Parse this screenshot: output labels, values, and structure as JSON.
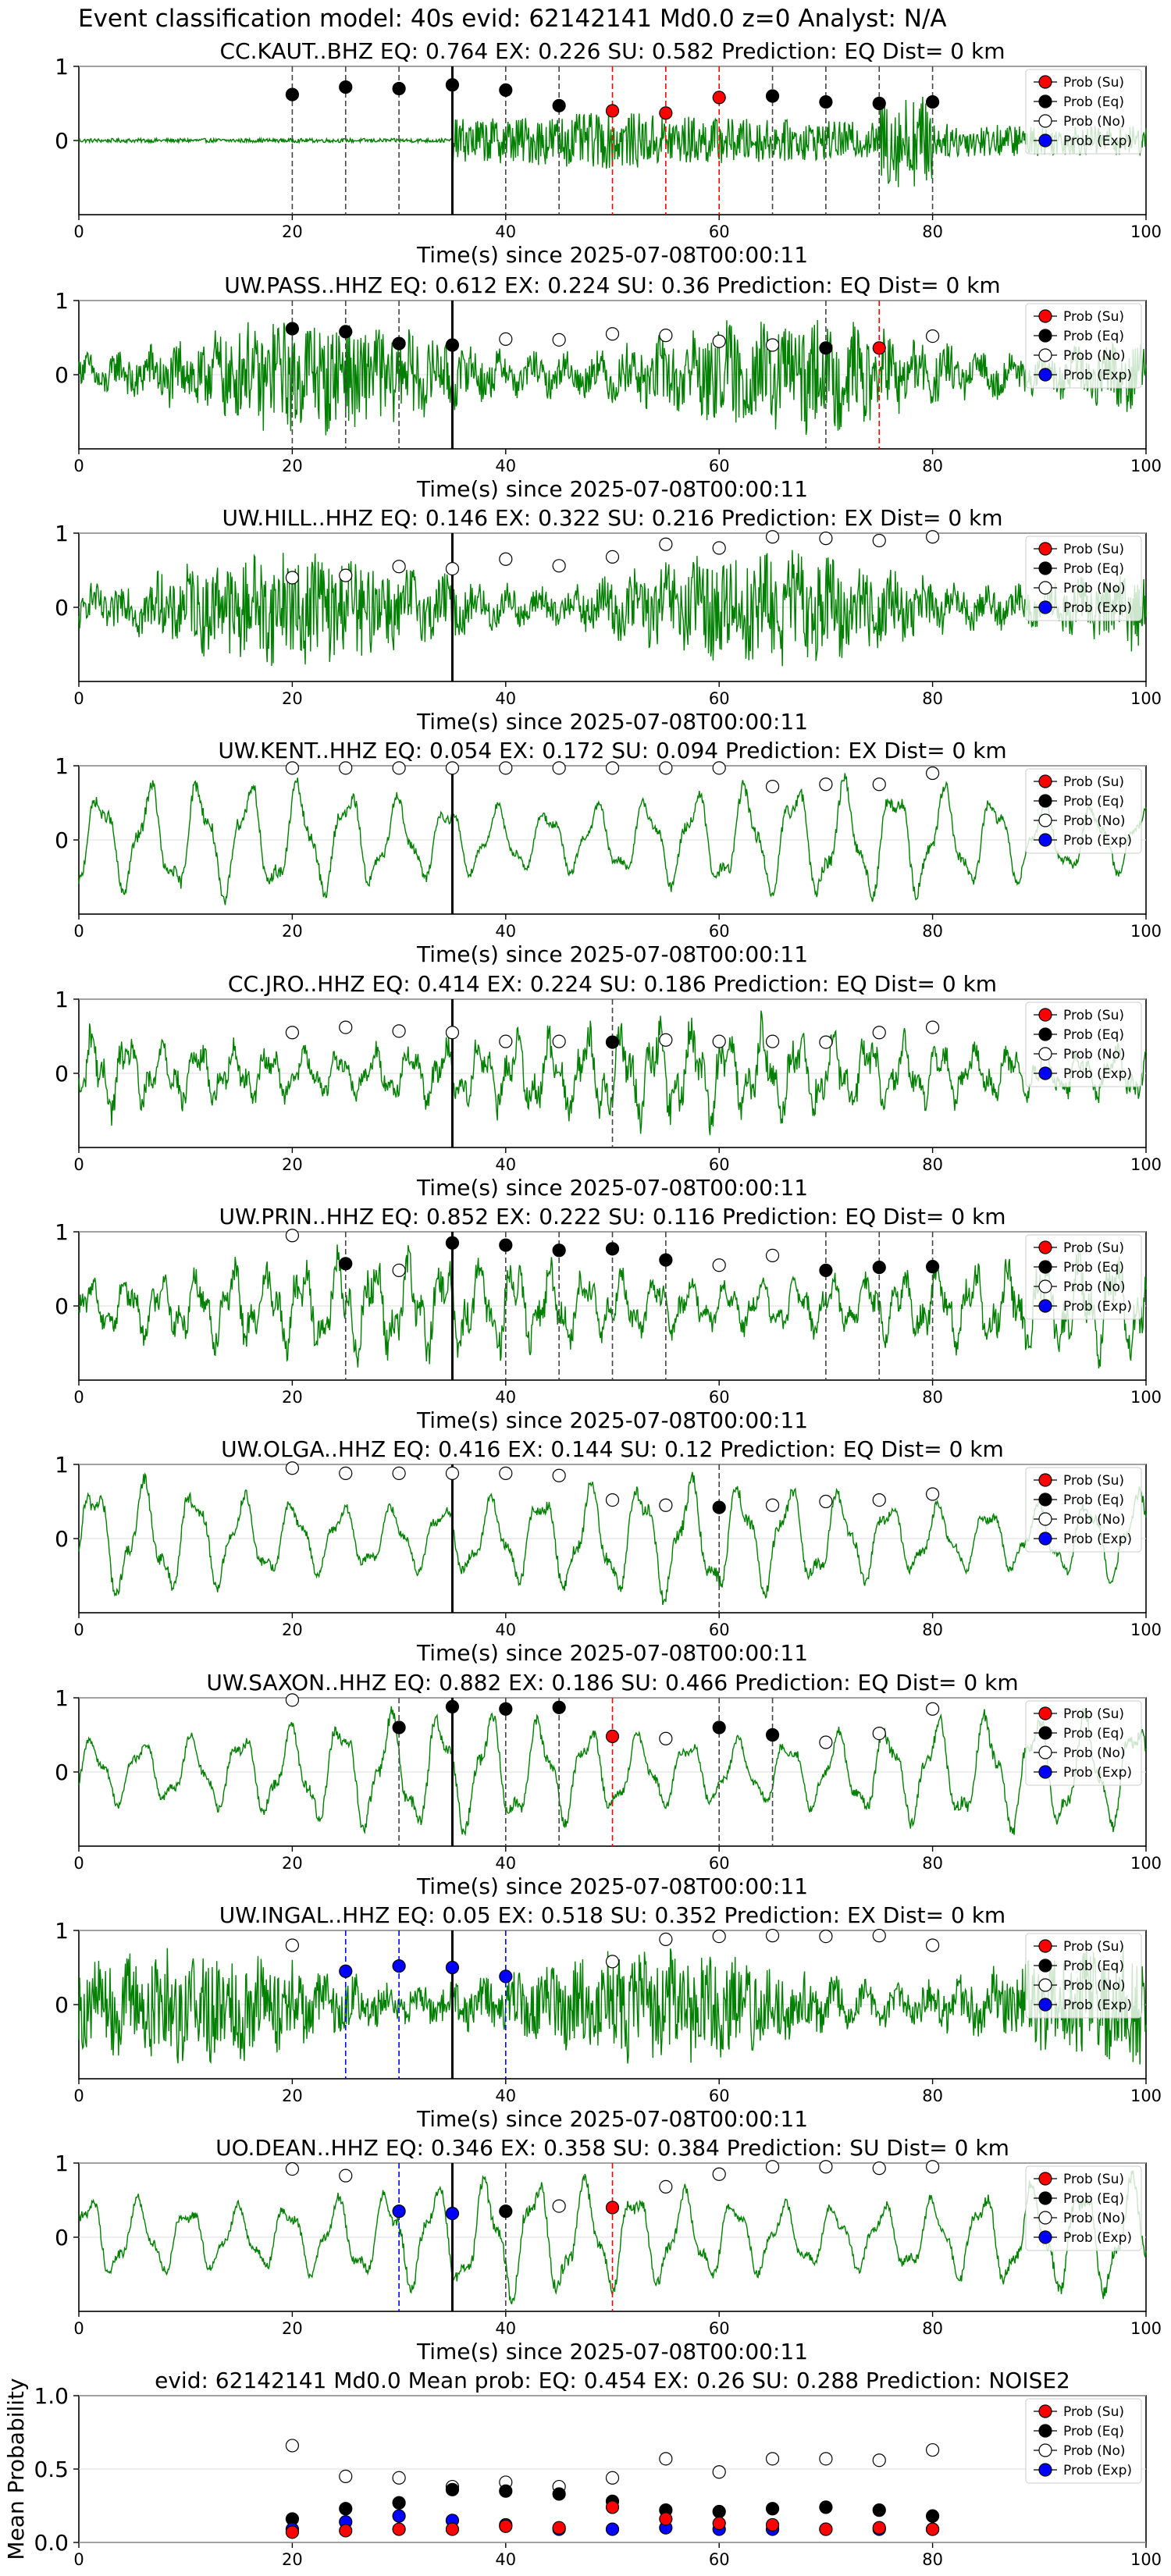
{
  "figure": {
    "suptitle": "Event classification model: 40s evid: 62142141 Md0.0 z=0 Analyst: N/A",
    "xlabel": "Time(s) since 2025-07-08T00:00:11",
    "legend": [
      "Prob (Su)",
      "Prob (Eq)",
      "Prob (No)",
      "Prob (Exp)"
    ],
    "colors": {
      "trace": "#008000",
      "su": "#ff0000",
      "eq": "#000000",
      "no": "#ffffff",
      "exp": "#0000ff",
      "vline": "#000000"
    }
  },
  "chart_data": [
    {
      "type": "line",
      "title": "CC.KAUT..BHZ   EQ: 0.764  EX: 0.226  SU: 0.582   Prediction: EQ    Dist= 0 km",
      "xlim": [
        0,
        100
      ],
      "ylim": [
        -1,
        1
      ],
      "xticks": [
        0,
        20,
        40,
        60,
        80,
        100
      ],
      "yticks": [
        0,
        1
      ],
      "pick_time": 35,
      "waveform": "impulsive",
      "points": [
        [
          20,
          0.62,
          "eq"
        ],
        [
          25,
          0.72,
          "eq"
        ],
        [
          30,
          0.7,
          "eq"
        ],
        [
          35,
          0.75,
          "eq"
        ],
        [
          40,
          0.68,
          "eq"
        ],
        [
          45,
          0.47,
          "eq"
        ],
        [
          50,
          0.4,
          "su"
        ],
        [
          55,
          0.37,
          "su"
        ],
        [
          60,
          0.58,
          "su"
        ],
        [
          65,
          0.6,
          "eq"
        ],
        [
          70,
          0.52,
          "eq"
        ],
        [
          75,
          0.5,
          "eq"
        ],
        [
          80,
          0.52,
          "eq"
        ]
      ]
    },
    {
      "type": "line",
      "title": "UW.PASS..HHZ   EQ: 0.612  EX: 0.224  SU: 0.36   Prediction: EQ    Dist= 0 km",
      "xlim": [
        0,
        100
      ],
      "ylim": [
        -1,
        1
      ],
      "xticks": [
        0,
        20,
        40,
        60,
        80,
        100
      ],
      "yticks": [
        0,
        1
      ],
      "pick_time": 35,
      "waveform": "noisy",
      "points": [
        [
          20,
          0.62,
          "eq"
        ],
        [
          25,
          0.58,
          "eq"
        ],
        [
          30,
          0.42,
          "eq"
        ],
        [
          35,
          0.4,
          "eq"
        ],
        [
          40,
          0.48,
          "no"
        ],
        [
          45,
          0.47,
          "no"
        ],
        [
          50,
          0.55,
          "no"
        ],
        [
          55,
          0.53,
          "no"
        ],
        [
          60,
          0.45,
          "no"
        ],
        [
          65,
          0.4,
          "no"
        ],
        [
          70,
          0.36,
          "eq"
        ],
        [
          75,
          0.36,
          "su"
        ],
        [
          80,
          0.52,
          "no"
        ]
      ]
    },
    {
      "type": "line",
      "title": "UW.HILL..HHZ   EQ: 0.146  EX: 0.322  SU: 0.216   Prediction: EX    Dist= 0 km",
      "xlim": [
        0,
        100
      ],
      "ylim": [
        -1,
        1
      ],
      "xticks": [
        0,
        20,
        40,
        60,
        80,
        100
      ],
      "yticks": [
        0,
        1
      ],
      "pick_time": 35,
      "waveform": "noisy",
      "points": [
        [
          20,
          0.4,
          "no"
        ],
        [
          25,
          0.43,
          "no"
        ],
        [
          30,
          0.55,
          "no"
        ],
        [
          35,
          0.52,
          "no"
        ],
        [
          40,
          0.65,
          "no"
        ],
        [
          45,
          0.56,
          "no"
        ],
        [
          50,
          0.68,
          "no"
        ],
        [
          55,
          0.85,
          "no"
        ],
        [
          60,
          0.8,
          "no"
        ],
        [
          65,
          0.95,
          "no"
        ],
        [
          70,
          0.93,
          "no"
        ],
        [
          75,
          0.9,
          "no"
        ],
        [
          80,
          0.95,
          "no"
        ]
      ]
    },
    {
      "type": "line",
      "title": "UW.KENT..HHZ   EQ: 0.054  EX: 0.172  SU: 0.094   Prediction: EX    Dist= 0 km",
      "xlim": [
        0,
        100
      ],
      "ylim": [
        -1,
        1
      ],
      "xticks": [
        0,
        20,
        40,
        60,
        80,
        100
      ],
      "yticks": [
        0,
        1
      ],
      "pick_time": 35,
      "waveform": "lowfreq",
      "points": [
        [
          20,
          0.97,
          "no"
        ],
        [
          25,
          0.97,
          "no"
        ],
        [
          30,
          0.97,
          "no"
        ],
        [
          35,
          0.97,
          "no"
        ],
        [
          40,
          0.97,
          "no"
        ],
        [
          45,
          0.97,
          "no"
        ],
        [
          50,
          0.97,
          "no"
        ],
        [
          55,
          0.97,
          "no"
        ],
        [
          60,
          0.97,
          "no"
        ],
        [
          65,
          0.72,
          "no"
        ],
        [
          70,
          0.75,
          "no"
        ],
        [
          75,
          0.75,
          "no"
        ],
        [
          80,
          0.9,
          "no"
        ]
      ]
    },
    {
      "type": "line",
      "title": "CC.JRO..HHZ   EQ: 0.414  EX: 0.224  SU: 0.186   Prediction: EQ    Dist= 0 km",
      "xlim": [
        0,
        100
      ],
      "ylim": [
        -1,
        1
      ],
      "xticks": [
        0,
        20,
        40,
        60,
        80,
        100
      ],
      "yticks": [
        0,
        1
      ],
      "pick_time": 35,
      "waveform": "midfreq",
      "points": [
        [
          20,
          0.55,
          "no"
        ],
        [
          25,
          0.62,
          "no"
        ],
        [
          30,
          0.57,
          "no"
        ],
        [
          35,
          0.55,
          "no"
        ],
        [
          40,
          0.43,
          "no"
        ],
        [
          45,
          0.43,
          "no"
        ],
        [
          50,
          0.42,
          "eq"
        ],
        [
          55,
          0.45,
          "no"
        ],
        [
          60,
          0.43,
          "no"
        ],
        [
          65,
          0.43,
          "no"
        ],
        [
          70,
          0.42,
          "no"
        ],
        [
          75,
          0.55,
          "no"
        ],
        [
          80,
          0.62,
          "no"
        ]
      ]
    },
    {
      "type": "line",
      "title": "UW.PRIN..HHZ   EQ: 0.852  EX: 0.222  SU: 0.116   Prediction: EQ    Dist= 0 km",
      "xlim": [
        0,
        100
      ],
      "ylim": [
        -1,
        1
      ],
      "xticks": [
        0,
        20,
        40,
        60,
        80,
        100
      ],
      "yticks": [
        0,
        1
      ],
      "pick_time": 35,
      "waveform": "midfreq",
      "points": [
        [
          20,
          0.95,
          "no"
        ],
        [
          25,
          0.57,
          "eq"
        ],
        [
          30,
          0.48,
          "no"
        ],
        [
          35,
          0.85,
          "eq"
        ],
        [
          40,
          0.82,
          "eq"
        ],
        [
          45,
          0.75,
          "eq"
        ],
        [
          50,
          0.77,
          "eq"
        ],
        [
          55,
          0.62,
          "eq"
        ],
        [
          60,
          0.55,
          "no"
        ],
        [
          65,
          0.68,
          "no"
        ],
        [
          70,
          0.48,
          "eq"
        ],
        [
          75,
          0.52,
          "eq"
        ],
        [
          80,
          0.53,
          "eq"
        ]
      ]
    },
    {
      "type": "line",
      "title": "UW.OLGA..HHZ   EQ: 0.416  EX: 0.144  SU: 0.12   Prediction: EQ    Dist= 0 km",
      "xlim": [
        0,
        100
      ],
      "ylim": [
        -1,
        1
      ],
      "xticks": [
        0,
        20,
        40,
        60,
        80,
        100
      ],
      "yticks": [
        0,
        1
      ],
      "pick_time": 35,
      "waveform": "lowfreq",
      "points": [
        [
          20,
          0.95,
          "no"
        ],
        [
          25,
          0.88,
          "no"
        ],
        [
          30,
          0.88,
          "no"
        ],
        [
          35,
          0.88,
          "no"
        ],
        [
          40,
          0.88,
          "no"
        ],
        [
          45,
          0.85,
          "no"
        ],
        [
          50,
          0.52,
          "no"
        ],
        [
          55,
          0.45,
          "no"
        ],
        [
          60,
          0.42,
          "eq"
        ],
        [
          65,
          0.45,
          "no"
        ],
        [
          70,
          0.5,
          "no"
        ],
        [
          75,
          0.52,
          "no"
        ],
        [
          80,
          0.6,
          "no"
        ]
      ]
    },
    {
      "type": "line",
      "title": "UW.SAXON..HHZ   EQ: 0.882  EX: 0.186  SU: 0.466   Prediction: EQ    Dist= 0 km",
      "xlim": [
        0,
        100
      ],
      "ylim": [
        -1,
        1
      ],
      "xticks": [
        0,
        20,
        40,
        60,
        80,
        100
      ],
      "yticks": [
        0,
        1
      ],
      "pick_time": 35,
      "waveform": "lowfreq",
      "points": [
        [
          20,
          0.97,
          "no"
        ],
        [
          30,
          0.6,
          "eq"
        ],
        [
          35,
          0.88,
          "eq"
        ],
        [
          40,
          0.85,
          "eq"
        ],
        [
          45,
          0.87,
          "eq"
        ],
        [
          50,
          0.48,
          "su"
        ],
        [
          55,
          0.45,
          "no"
        ],
        [
          60,
          0.6,
          "eq"
        ],
        [
          65,
          0.5,
          "eq"
        ],
        [
          70,
          0.4,
          "no"
        ],
        [
          75,
          0.52,
          "no"
        ],
        [
          80,
          0.85,
          "no"
        ]
      ]
    },
    {
      "type": "line",
      "title": "UW.INGAL..HHZ   EQ: 0.05  EX: 0.518  SU: 0.352   Prediction: EX    Dist= 0 km",
      "xlim": [
        0,
        100
      ],
      "ylim": [
        -1,
        1
      ],
      "xticks": [
        0,
        20,
        40,
        60,
        80,
        100
      ],
      "yticks": [
        0,
        1
      ],
      "pick_time": 35,
      "waveform": "noisy",
      "points": [
        [
          20,
          0.8,
          "no"
        ],
        [
          25,
          0.45,
          "exp"
        ],
        [
          30,
          0.52,
          "exp"
        ],
        [
          35,
          0.5,
          "exp"
        ],
        [
          40,
          0.38,
          "exp"
        ],
        [
          50,
          0.58,
          "no"
        ],
        [
          55,
          0.88,
          "no"
        ],
        [
          60,
          0.92,
          "no"
        ],
        [
          65,
          0.93,
          "no"
        ],
        [
          70,
          0.92,
          "no"
        ],
        [
          75,
          0.93,
          "no"
        ],
        [
          80,
          0.8,
          "no"
        ]
      ]
    },
    {
      "type": "line",
      "title": "UO.DEAN..HHZ   EQ: 0.346  EX: 0.358  SU: 0.384   Prediction: SU    Dist= 0 km",
      "xlim": [
        0,
        100
      ],
      "ylim": [
        -1,
        1
      ],
      "xticks": [
        0,
        20,
        40,
        60,
        80,
        100
      ],
      "yticks": [
        0,
        1
      ],
      "pick_time": 35,
      "waveform": "lowfreq",
      "points": [
        [
          20,
          0.92,
          "no"
        ],
        [
          25,
          0.83,
          "no"
        ],
        [
          30,
          0.35,
          "exp"
        ],
        [
          35,
          0.32,
          "exp"
        ],
        [
          40,
          0.35,
          "eq"
        ],
        [
          45,
          0.42,
          "no"
        ],
        [
          50,
          0.4,
          "su"
        ],
        [
          55,
          0.68,
          "no"
        ],
        [
          60,
          0.85,
          "no"
        ],
        [
          65,
          0.95,
          "no"
        ],
        [
          70,
          0.95,
          "no"
        ],
        [
          75,
          0.93,
          "no"
        ],
        [
          80,
          0.95,
          "no"
        ]
      ]
    },
    {
      "type": "scatter",
      "title": "evid: 62142141  Md0.0   Mean prob:   EQ: 0.454  EX: 0.26  SU: 0.288   Prediction: NOISE2",
      "ylabel": "Mean Probability",
      "xlim": [
        0,
        100
      ],
      "ylim": [
        0,
        1
      ],
      "xticks": [
        0,
        20,
        40,
        60,
        80,
        100
      ],
      "yticks": [
        0.0,
        0.5,
        1.0
      ],
      "x": [
        20,
        25,
        30,
        35,
        40,
        45,
        50,
        55,
        60,
        65,
        70,
        75,
        80
      ],
      "series": [
        {
          "name": "Prob (No)",
          "key": "no",
          "values": [
            0.66,
            0.45,
            0.44,
            0.38,
            0.41,
            0.38,
            0.44,
            0.57,
            0.48,
            0.57,
            0.57,
            0.56,
            0.63
          ]
        },
        {
          "name": "Prob (Eq)",
          "key": "eq",
          "values": [
            0.16,
            0.23,
            0.27,
            0.36,
            0.35,
            0.33,
            0.28,
            0.22,
            0.21,
            0.23,
            0.24,
            0.22,
            0.18
          ]
        },
        {
          "name": "Prob (Exp)",
          "key": "exp",
          "values": [
            0.09,
            0.14,
            0.18,
            0.15,
            0.12,
            0.09,
            0.09,
            0.1,
            0.09,
            0.09,
            0.09,
            0.09,
            0.09
          ]
        },
        {
          "name": "Prob (Su)",
          "key": "su",
          "values": [
            0.07,
            0.08,
            0.09,
            0.09,
            0.11,
            0.1,
            0.24,
            0.16,
            0.13,
            0.12,
            0.09,
            0.1,
            0.09
          ]
        }
      ]
    }
  ]
}
